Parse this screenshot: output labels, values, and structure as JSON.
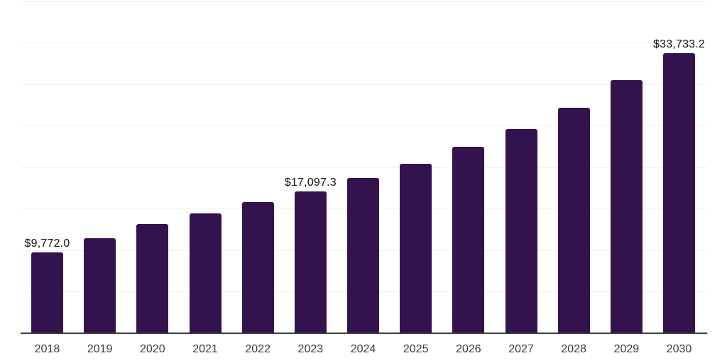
{
  "chart_data": {
    "type": "bar",
    "title": "",
    "xlabel": "",
    "ylabel": "",
    "categories": [
      "2018",
      "2019",
      "2020",
      "2021",
      "2022",
      "2023",
      "2024",
      "2025",
      "2026",
      "2027",
      "2028",
      "2029",
      "2030"
    ],
    "values": [
      9772.0,
      11450,
      13200,
      14450,
      15800,
      17097.3,
      18700,
      20450,
      22450,
      24650,
      27200,
      30500,
      33733.2
    ],
    "data_labels": {
      "2018": "$9,772.0",
      "2023": "$17,097.3",
      "2030": "$33,733.2"
    },
    "ylim": [
      0,
      40000
    ],
    "gridline_interval": 5000,
    "grid": "horizontal-only",
    "legend": "none",
    "y_axis_tick_labels_visible": false
  },
  "style": {
    "bar_color": "#33134D",
    "gridline_color": "#F1F1F1",
    "axis_color": "#3C3C3C",
    "tick_label_color": "#3B3B3B",
    "data_label_color": "#101010",
    "background_color": "#FFFFFF"
  }
}
